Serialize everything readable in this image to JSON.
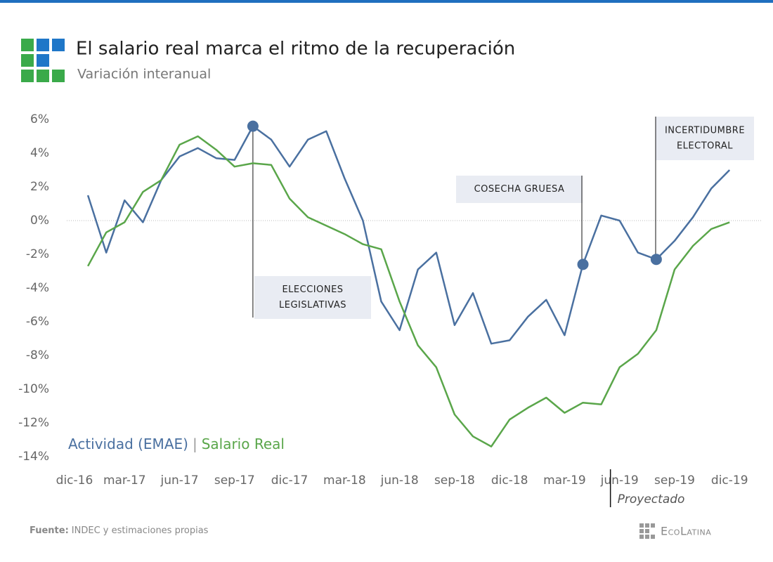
{
  "chart_data": {
    "type": "line",
    "title": "El salario real marca el ritmo de la recuperación",
    "subtitle": "Variación interanual",
    "categories": [
      "dic-16",
      null,
      null,
      "mar-17",
      null,
      null,
      "jun-17",
      null,
      null,
      "sep-17",
      null,
      null,
      "dic-17",
      null,
      null,
      "mar-18",
      null,
      null,
      "jun-18",
      null,
      null,
      "sep-18",
      null,
      null,
      "dic-18",
      null,
      null,
      "mar-19",
      null,
      null,
      "jun-19",
      null,
      null,
      "sep-19",
      null,
      null,
      "dic-19"
    ],
    "series": [
      {
        "name": "Actividad (EMAE)",
        "color": "#4a70a0",
        "values": [
          null,
          1.5,
          -1.9,
          1.2,
          -0.1,
          2.4,
          3.8,
          4.3,
          3.7,
          3.6,
          5.6,
          4.8,
          3.2,
          4.8,
          5.3,
          2.5,
          0.0,
          -4.8,
          -6.5,
          -2.9,
          -1.9,
          -6.2,
          -4.3,
          -7.3,
          -7.1,
          -5.7,
          -4.7,
          -6.8,
          -2.6,
          0.3,
          0.0,
          -1.9,
          -2.3,
          -1.2,
          0.2,
          1.9,
          3.0
        ]
      },
      {
        "name": "Salario Real",
        "color": "#5aa64a",
        "values": [
          null,
          -2.7,
          -0.7,
          -0.1,
          1.7,
          2.4,
          4.5,
          5.0,
          4.2,
          3.2,
          3.4,
          3.3,
          1.3,
          0.2,
          -0.3,
          -0.8,
          -1.4,
          -1.7,
          -4.8,
          -7.4,
          -8.7,
          -11.5,
          -12.8,
          -13.4,
          -11.8,
          -11.1,
          -10.5,
          -11.4,
          -10.8,
          -10.9,
          -8.7,
          -7.9,
          -6.5,
          -2.9,
          -1.5,
          -0.5,
          -0.1
        ]
      }
    ],
    "legend_separator": "|",
    "ylim": [
      -14.5,
      6.5
    ],
    "yticks": [
      {
        "value": -14,
        "label": "-14%"
      },
      {
        "value": -12,
        "label": "-12%"
      },
      {
        "value": -10,
        "label": "-10%"
      },
      {
        "value": -8,
        "label": "-8%"
      },
      {
        "value": -6,
        "label": "-6%"
      },
      {
        "value": -4,
        "label": "-4%"
      },
      {
        "value": -2,
        "label": "-2%"
      },
      {
        "value": 0,
        "label": "0%"
      },
      {
        "value": 2,
        "label": "2%"
      },
      {
        "value": 4,
        "label": "4%"
      },
      {
        "value": 6,
        "label": "6%"
      }
    ],
    "zero_line": true,
    "annotations": [
      {
        "lines": [
          "ELECCIONES",
          "LEGISLATIVAS"
        ],
        "at": 10
      },
      {
        "lines": [
          "COSECHA GRUESA"
        ],
        "at": 28
      },
      {
        "lines": [
          "INCERTIDUMBRE",
          "ELECTORAL"
        ],
        "at": 32
      }
    ],
    "projection": {
      "label": "Proyectado",
      "from": "jun-19"
    },
    "source": {
      "label": "Fuente:",
      "text": "INDEC y estimaciones propias"
    },
    "brand": "EcoLatina"
  }
}
